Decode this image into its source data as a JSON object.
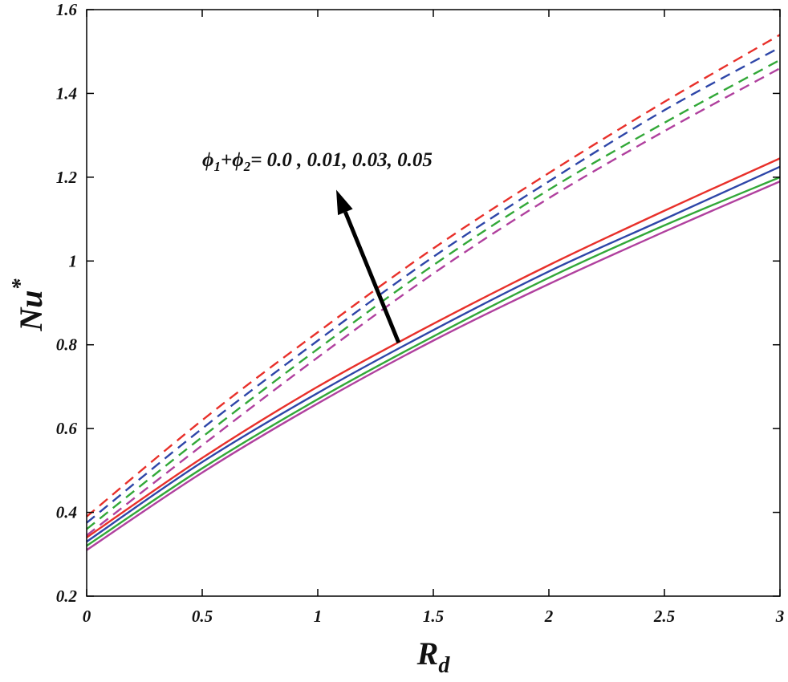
{
  "chart_data": {
    "type": "line",
    "title": "",
    "xlabel": "R",
    "xlabel_sub": "d",
    "ylabel": "Nu",
    "ylabel_sup": "*",
    "xlim": [
      0,
      3
    ],
    "ylim": [
      0.2,
      1.6
    ],
    "xticks": [
      "0",
      "0.5",
      "1",
      "1.5",
      "2",
      "2.5",
      "3"
    ],
    "yticks": [
      "0.2",
      "0.4",
      "0.6",
      "0.8",
      "1",
      "1.2",
      "1.4",
      "1.6"
    ],
    "grid": false,
    "x": [
      0,
      0.5,
      1,
      1.5,
      2,
      2.5,
      3
    ],
    "series": [
      {
        "name": "dashed-red",
        "style": "dashed",
        "color": "#e8302a",
        "values": [
          0.39,
          0.62,
          0.83,
          1.03,
          1.21,
          1.38,
          1.54
        ]
      },
      {
        "name": "dashed-blue",
        "style": "dashed",
        "color": "#2e46a8",
        "values": [
          0.375,
          0.6,
          0.81,
          1.01,
          1.19,
          1.36,
          1.51
        ]
      },
      {
        "name": "dashed-green",
        "style": "dashed",
        "color": "#32a838",
        "values": [
          0.36,
          0.58,
          0.79,
          0.99,
          1.17,
          1.33,
          1.48
        ]
      },
      {
        "name": "dashed-magenta",
        "style": "dashed",
        "color": "#b0409e",
        "values": [
          0.345,
          0.56,
          0.77,
          0.97,
          1.15,
          1.31,
          1.46
        ]
      },
      {
        "name": "solid-red",
        "style": "solid",
        "color": "#e8302a",
        "values": [
          0.34,
          0.53,
          0.7,
          0.85,
          0.99,
          1.12,
          1.245
        ]
      },
      {
        "name": "solid-blue",
        "style": "solid",
        "color": "#2e46a8",
        "values": [
          0.33,
          0.52,
          0.685,
          0.835,
          0.975,
          1.1,
          1.225
        ]
      },
      {
        "name": "solid-green",
        "style": "solid",
        "color": "#32a838",
        "values": [
          0.32,
          0.505,
          0.67,
          0.82,
          0.96,
          1.085,
          1.2
        ]
      },
      {
        "name": "solid-magenta",
        "style": "solid",
        "color": "#b0409e",
        "values": [
          0.31,
          0.495,
          0.66,
          0.81,
          0.945,
          1.07,
          1.19
        ]
      }
    ],
    "annotation": {
      "phi": "ϕ",
      "sub1": "1",
      "plus": "+",
      "sub2": "2",
      "rest": "= 0.0 , 0.01, 0.03, 0.05",
      "arrow_from": [
        1.35,
        0.805
      ],
      "arrow_to": [
        1.08,
        1.17
      ]
    }
  }
}
